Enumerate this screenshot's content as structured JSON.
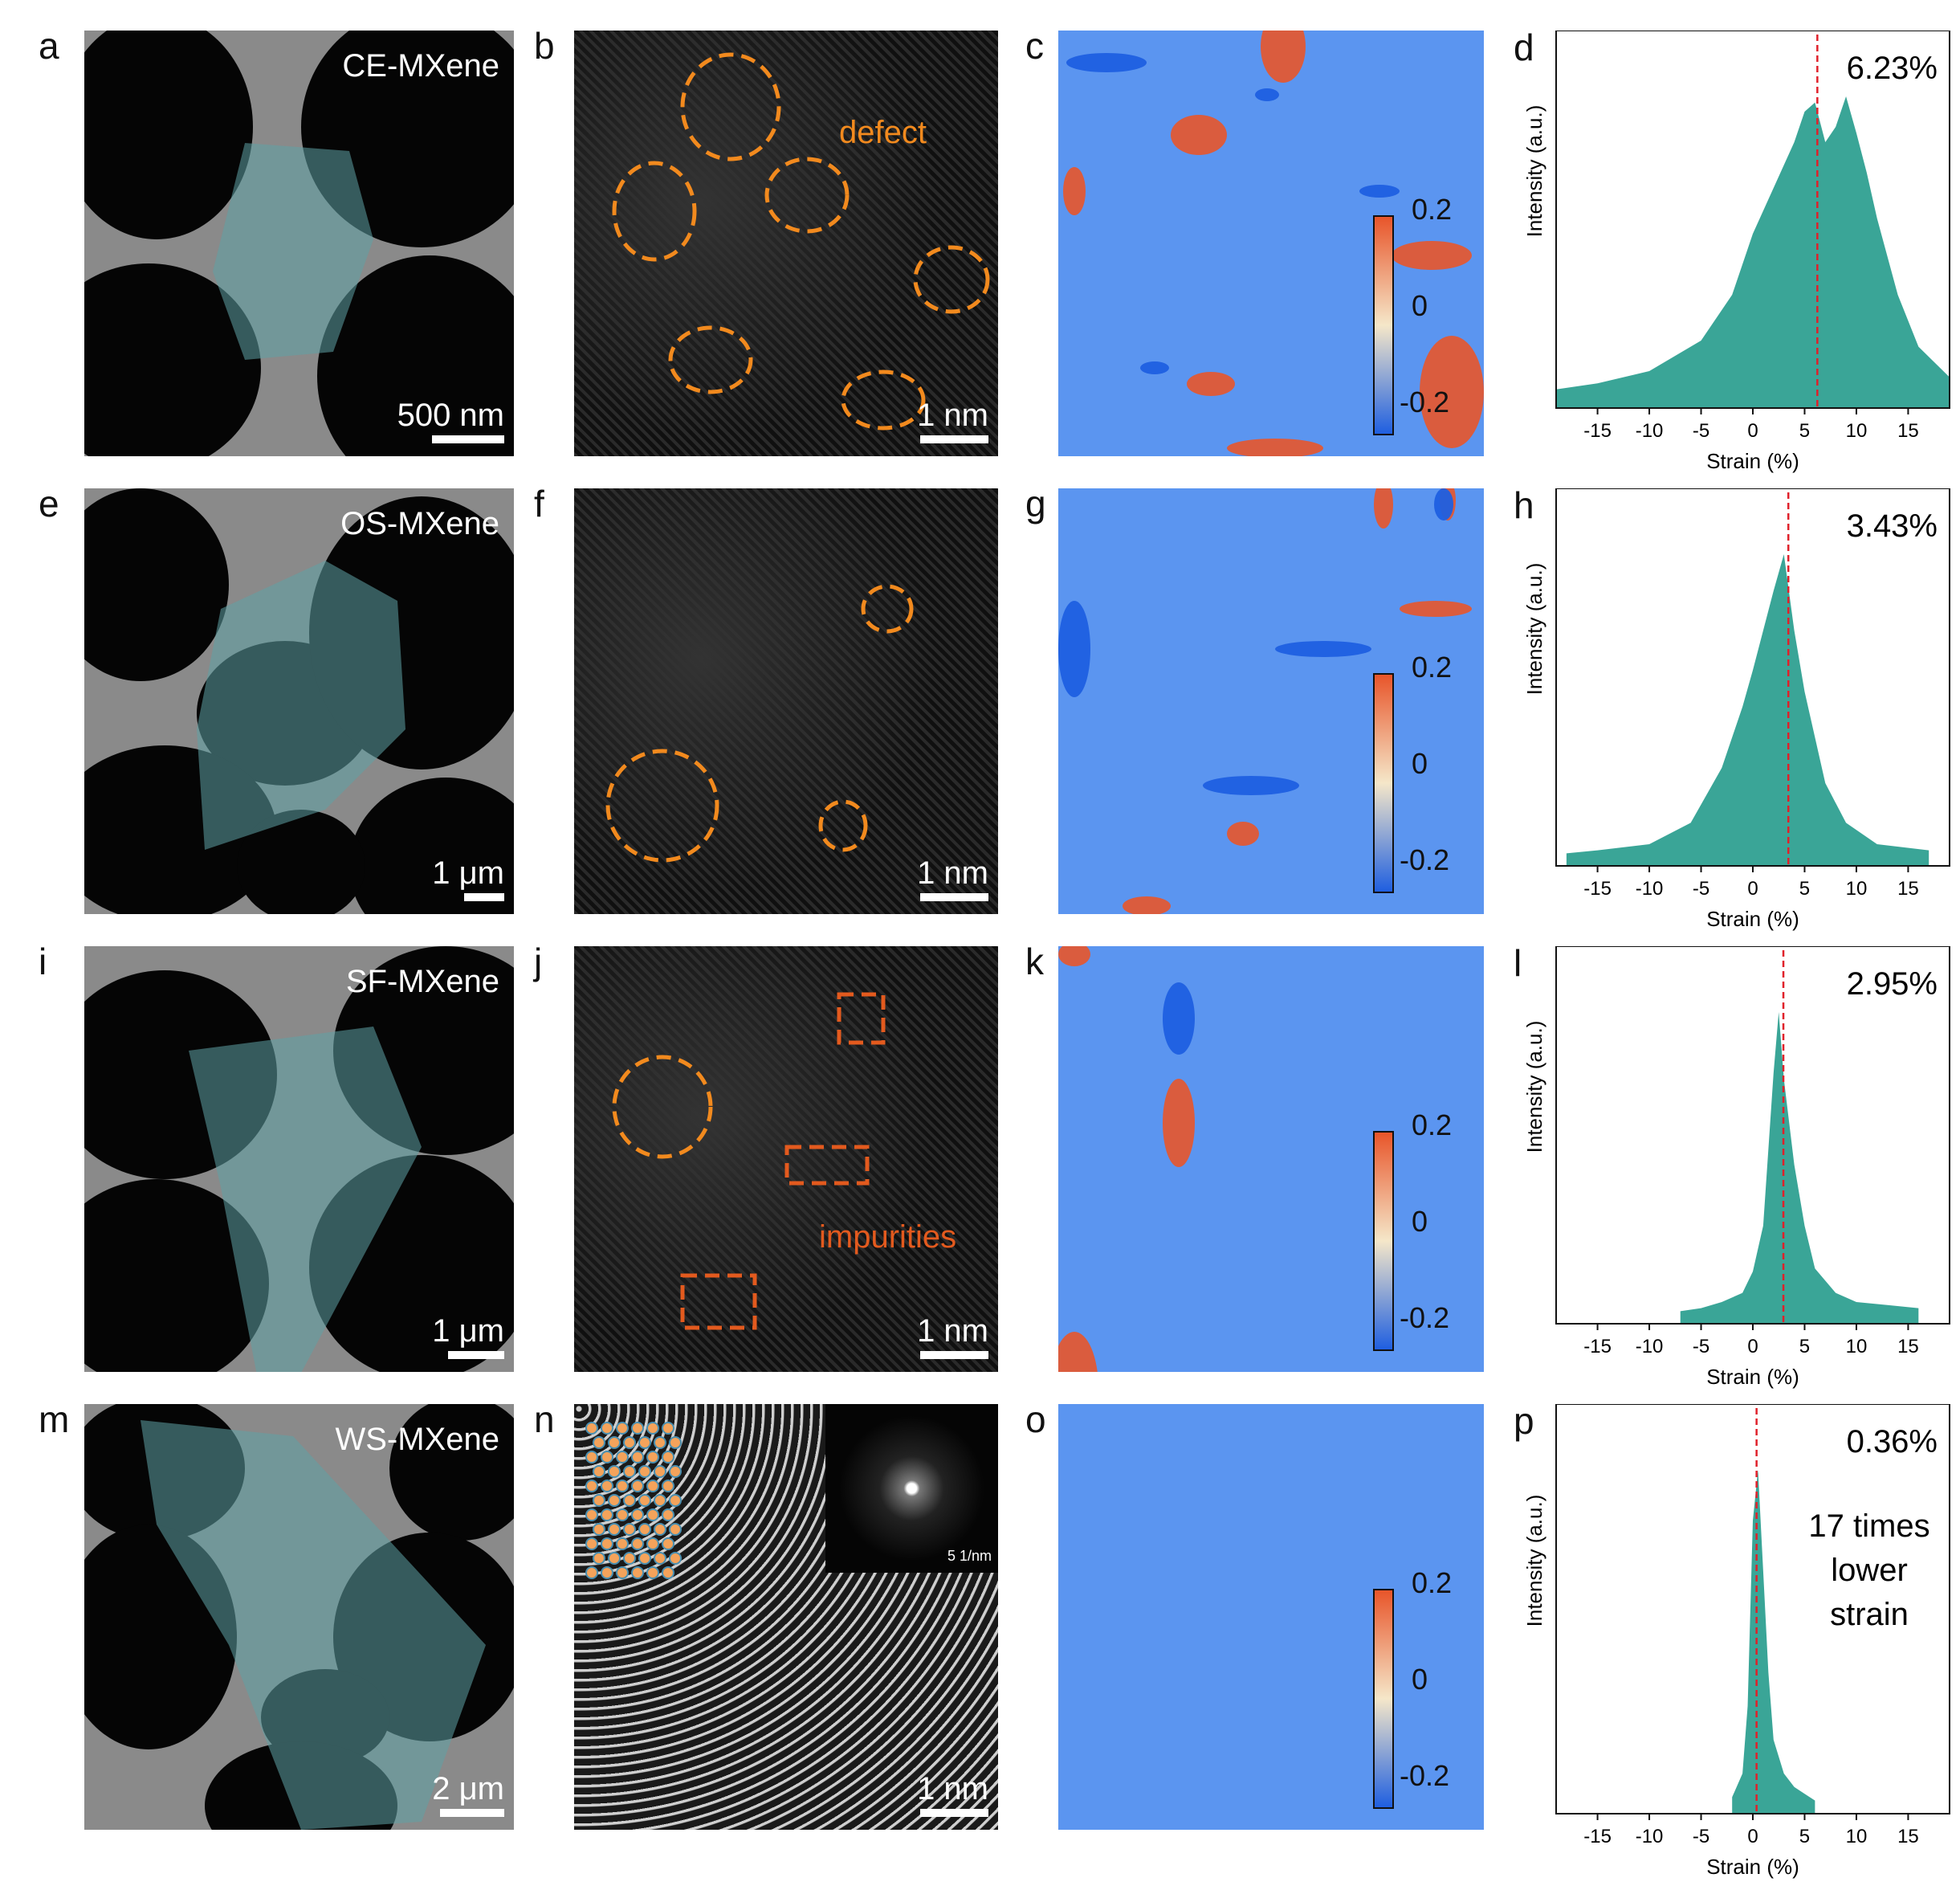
{
  "rows": [
    {
      "panels": [
        "a",
        "b",
        "c",
        "d"
      ],
      "sample": "CE-MXene",
      "scale_tem": "500 nm",
      "scale_hr": "1 nm",
      "hr_annotation": "defect",
      "colorbar": [
        "0.2",
        "0",
        "-0.2"
      ],
      "hist_value": "6.23%"
    },
    {
      "panels": [
        "e",
        "f",
        "g",
        "h"
      ],
      "sample": "OS-MXene",
      "scale_tem": "1 μm",
      "scale_hr": "1 nm",
      "hr_annotation": "",
      "colorbar": [
        "0.2",
        "0",
        "-0.2"
      ],
      "hist_value": "3.43%"
    },
    {
      "panels": [
        "i",
        "j",
        "k",
        "l"
      ],
      "sample": "SF-MXene",
      "scale_tem": "1 μm",
      "scale_hr": "1 nm",
      "hr_annotation": "impurities",
      "colorbar": [
        "0.2",
        "0",
        "-0.2"
      ],
      "hist_value": "2.95%"
    },
    {
      "panels": [
        "m",
        "n",
        "o",
        "p"
      ],
      "sample": "WS-MXene",
      "scale_tem": "2 μm",
      "scale_hr": "1 nm",
      "hr_annotation": "",
      "inset_scale": "5 1/nm",
      "colorbar": [
        "0.2",
        "0",
        "-0.2"
      ],
      "hist_value": "0.36%",
      "hist_note": [
        "17 times",
        "lower",
        "strain"
      ]
    }
  ],
  "hist_axes": {
    "xlabel": "Strain (%)",
    "ylabel": "Intensity (a.u.)",
    "ticks": [
      "-15",
      "-10",
      "-5",
      "0",
      "5",
      "10",
      "15"
    ]
  },
  "colors": {
    "hist_fill": "#3aa597",
    "dash_line": "#e0202a",
    "defect_circle": "#f28a1e",
    "impurity_box": "#e35a1e",
    "strain_base": "#5b95f0"
  },
  "chart_data": [
    {
      "type": "area",
      "title": "",
      "xlabel": "Strain (%)",
      "ylabel": "Intensity (a.u.)",
      "xlim": [
        -19,
        19
      ],
      "x": [
        -19,
        -15,
        -10,
        -5,
        -2,
        0,
        2,
        4,
        5,
        6,
        7,
        8,
        9,
        10,
        11,
        12,
        14,
        16,
        19
      ],
      "y": [
        0.04,
        0.06,
        0.1,
        0.2,
        0.35,
        0.55,
        0.7,
        0.85,
        0.95,
        0.98,
        0.85,
        0.9,
        1.0,
        0.88,
        0.75,
        0.6,
        0.35,
        0.18,
        0.08
      ],
      "marker": 6.23
    },
    {
      "type": "area",
      "title": "",
      "xlabel": "Strain (%)",
      "ylabel": "Intensity (a.u.)",
      "xlim": [
        -19,
        19
      ],
      "x": [
        -18,
        -15,
        -10,
        -6,
        -3,
        -1,
        0,
        1,
        2,
        3,
        4,
        5,
        6,
        7,
        9,
        12,
        17
      ],
      "y": [
        0.02,
        0.03,
        0.05,
        0.12,
        0.3,
        0.5,
        0.62,
        0.75,
        0.88,
        1.0,
        0.75,
        0.55,
        0.4,
        0.25,
        0.12,
        0.05,
        0.03
      ],
      "marker": 3.43
    },
    {
      "type": "area",
      "title": "",
      "xlabel": "Strain (%)",
      "ylabel": "Intensity (a.u.)",
      "xlim": [
        -19,
        19
      ],
      "x": [
        -7,
        -5,
        -3,
        -1,
        0,
        1,
        2,
        2.5,
        3,
        4,
        5,
        6,
        8,
        10,
        13,
        16
      ],
      "y": [
        0.02,
        0.03,
        0.05,
        0.08,
        0.15,
        0.3,
        0.8,
        1.0,
        0.78,
        0.5,
        0.3,
        0.16,
        0.08,
        0.05,
        0.04,
        0.03
      ],
      "marker": 2.95
    },
    {
      "type": "area",
      "title": "",
      "xlabel": "Strain (%)",
      "ylabel": "Intensity (a.u.)",
      "xlim": [
        -19,
        19
      ],
      "x": [
        -2,
        -1,
        -0.5,
        0,
        0.5,
        1,
        1.5,
        2,
        3,
        4,
        5,
        6
      ],
      "y": [
        0.03,
        0.1,
        0.3,
        0.85,
        1.0,
        0.7,
        0.4,
        0.2,
        0.1,
        0.06,
        0.04,
        0.02
      ],
      "marker": 0.36
    }
  ]
}
